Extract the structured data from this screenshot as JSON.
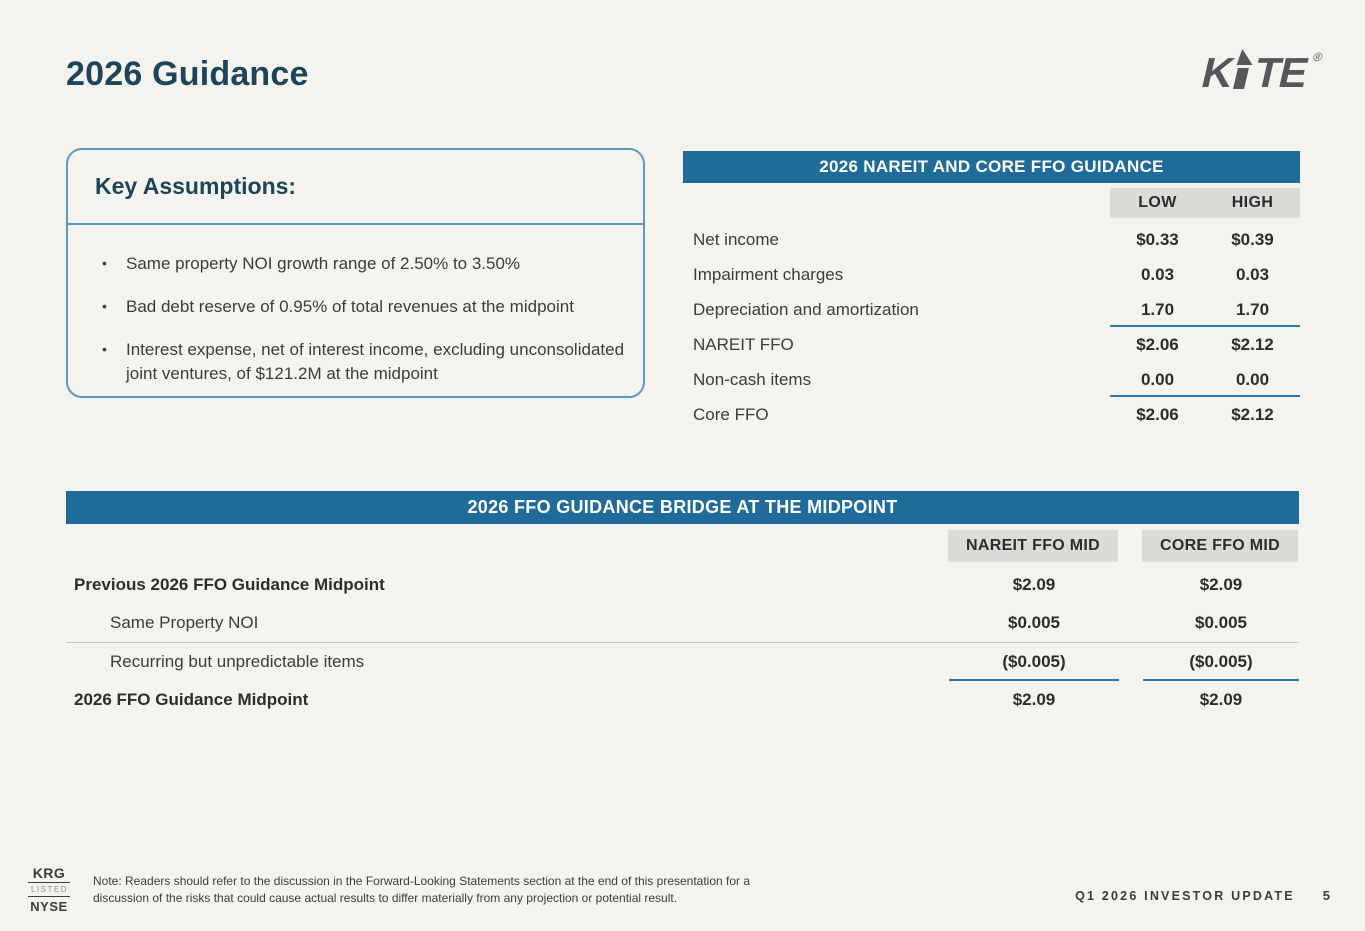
{
  "slide": {
    "title": "2026 Guidance",
    "logo": {
      "left": "K",
      "right": "TE",
      "registered": "®"
    }
  },
  "key_assumptions": {
    "heading": "Key Assumptions:",
    "bullet_glyph": "•",
    "bullets": [
      "Same property NOI growth range of 2.50% to 3.50%",
      "Bad debt reserve of 0.95% of total revenues at the midpoint",
      "Interest expense, net of interest income, excluding unconsolidated joint ventures, of $121.2M at the midpoint"
    ]
  },
  "guidance_table": {
    "title": "2026 NAREIT AND CORE FFO GUIDANCE",
    "columns": [
      "LOW",
      "HIGH"
    ],
    "rows": [
      {
        "label": "Net income",
        "low": "$0.33",
        "high": "$0.39",
        "rule_below": false
      },
      {
        "label": "Impairment charges",
        "low": "0.03",
        "high": "0.03",
        "rule_below": false
      },
      {
        "label": "Depreciation and amortization",
        "low": "1.70",
        "high": "1.70",
        "rule_below": true
      },
      {
        "label": "NAREIT FFO",
        "low": "$2.06",
        "high": "$2.12",
        "rule_below": false
      },
      {
        "label": "Non-cash items",
        "low": "0.00",
        "high": "0.00",
        "rule_below": true
      },
      {
        "label": "Core FFO",
        "low": "$2.06",
        "high": "$2.12",
        "rule_below": false
      }
    ]
  },
  "bridge_table": {
    "title": "2026 FFO GUIDANCE BRIDGE AT THE MIDPOINT",
    "columns": [
      "NAREIT FFO MID",
      "CORE FFO MID"
    ],
    "rows": [
      {
        "label": "Previous 2026 FFO Guidance Midpoint",
        "nareit": "$2.09",
        "core": "$2.09",
        "bold": true,
        "indent": false,
        "divider_below": false,
        "rule_below": false
      },
      {
        "label": "Same Property NOI",
        "nareit": "$0.005",
        "core": "$0.005",
        "bold": false,
        "indent": true,
        "divider_below": true,
        "rule_below": false
      },
      {
        "label": "Recurring but unpredictable items",
        "nareit": "($0.005)",
        "core": "($0.005)",
        "bold": false,
        "indent": true,
        "divider_below": false,
        "rule_below": true
      },
      {
        "label": "2026 FFO Guidance Midpoint",
        "nareit": "$2.09",
        "core": "$2.09",
        "bold": true,
        "indent": false,
        "divider_below": false,
        "rule_below": false
      }
    ]
  },
  "footer": {
    "exchange_badge": {
      "ticker": "KRG",
      "listed": "LISTED",
      "exchange": "NYSE"
    },
    "note": "Note: Readers should refer to the discussion in the Forward-Looking Statements section at the end of this presentation for a discussion of the risks that could cause actual results to differ materially from any projection or potential result.",
    "right_text": "Q1 2026 INVESTOR UPDATE",
    "page_number": "5"
  },
  "colors": {
    "background": "#F5F3EE",
    "navy_heading": "#1D4458",
    "table_header_blue": "#1F6B99",
    "box_border_blue": "#5C9BC1",
    "gray_band": "#DCDBD8",
    "sum_rule_blue": "#2878A8",
    "body_text": "#3C3C3C",
    "logo_gray": "#56575B"
  }
}
